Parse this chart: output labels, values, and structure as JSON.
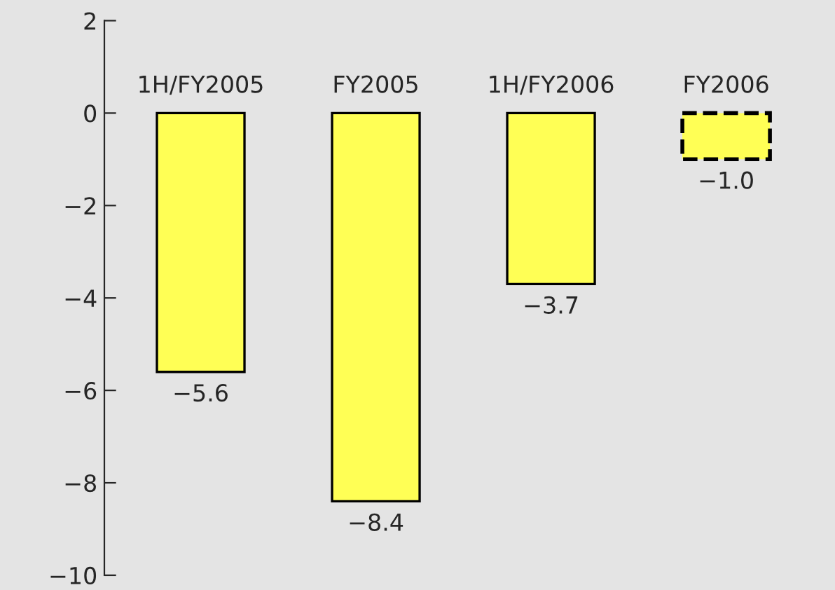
{
  "chart_data": {
    "type": "bar",
    "categories": [
      "1H/FY2005",
      "FY2005",
      "1H/FY2006",
      "FY2006"
    ],
    "series": [
      {
        "color": "#ffff55",
        "values": [
          -5.6,
          -8.4,
          -3.7,
          null
        ],
        "value_labels": [
          "−5.6",
          "−8.4",
          "−3.7",
          null
        ],
        "line_style": "solid"
      },
      {
        "color": "#ffff55",
        "values": [
          null,
          null,
          null,
          -1.0
        ],
        "value_labels": [
          null,
          null,
          null,
          "−1.0"
        ],
        "line_style": "dashed"
      }
    ],
    "ylim": [
      -10,
      2
    ],
    "yticks": [
      -10,
      -8,
      -6,
      -4,
      -2,
      0,
      2
    ],
    "grid": false,
    "legend": false
  }
}
